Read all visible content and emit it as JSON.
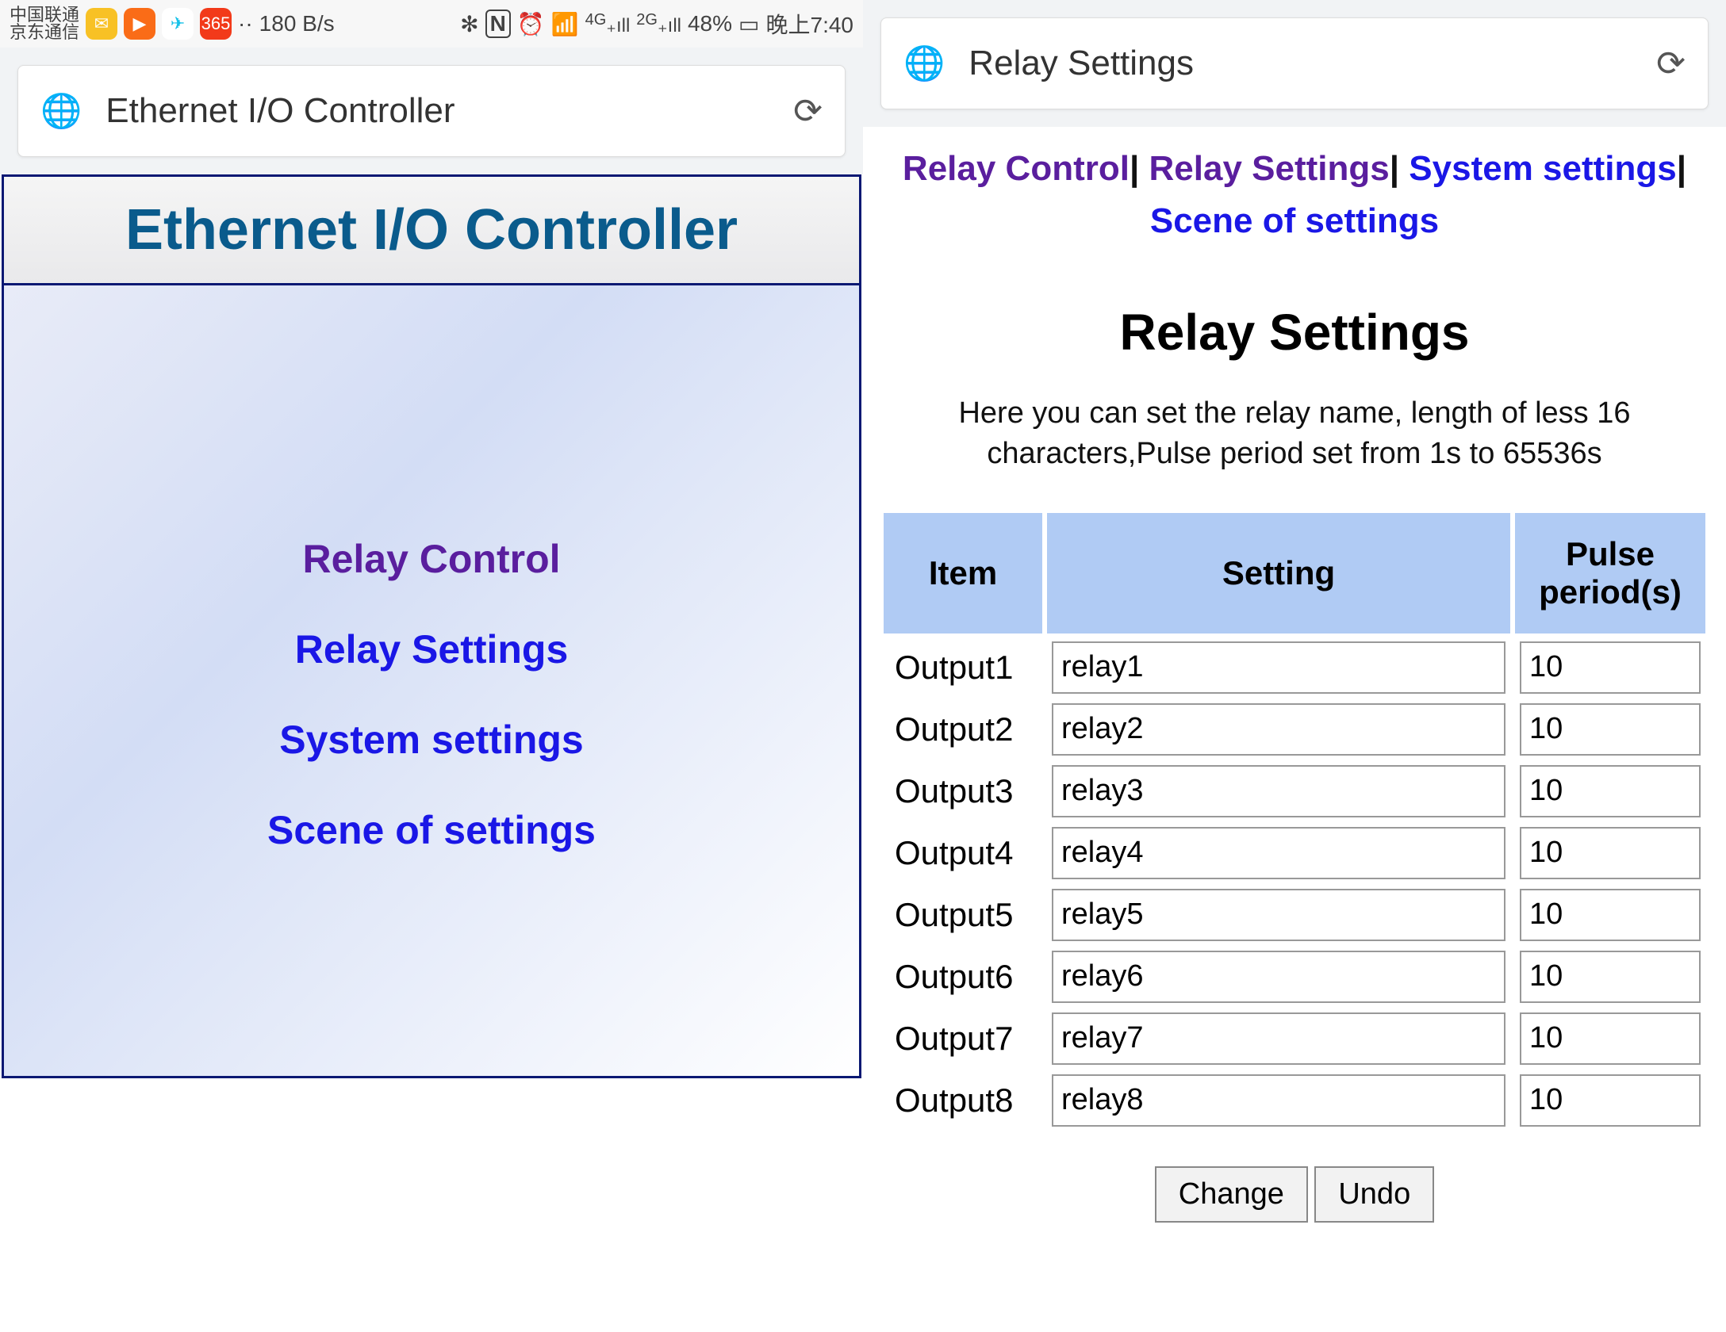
{
  "status_bar": {
    "carrier_top": "中国联通",
    "carrier_bottom": "京东通信",
    "app_icon_colors": [
      "#f8c125",
      "#fa6c17",
      "#17c1e8",
      "#f23a1a"
    ],
    "net_rate": "180 B/s",
    "battery_pct": "48%",
    "time": "晚上7:40",
    "sig_4g": "4G",
    "sig_2g": "2G"
  },
  "left": {
    "browser_label": "Ethernet I/O Controller",
    "main_title": "Ethernet I/O Controller",
    "links": [
      {
        "label": "Relay Control",
        "visited": true
      },
      {
        "label": "Relay Settings",
        "visited": false
      },
      {
        "label": "System settings",
        "visited": false
      },
      {
        "label": "Scene of settings",
        "visited": false
      }
    ]
  },
  "right": {
    "browser_label": "Relay Settings",
    "nav_links": [
      {
        "label": "Relay Control",
        "visited": true
      },
      {
        "label": "Relay Settings",
        "visited": true
      },
      {
        "label": "System settings",
        "visited": false
      },
      {
        "label": "Scene of settings",
        "visited": false
      }
    ],
    "title": "Relay Settings",
    "description": "Here you can set the relay name, length of less 16 characters,Pulse period set from 1s to 65536s",
    "table": {
      "headers": {
        "item": "Item",
        "setting": "Setting",
        "pulse": "Pulse period(s)"
      },
      "rows": [
        {
          "item": "Output1",
          "setting": "relay1",
          "pulse": "10"
        },
        {
          "item": "Output2",
          "setting": "relay2",
          "pulse": "10"
        },
        {
          "item": "Output3",
          "setting": "relay3",
          "pulse": "10"
        },
        {
          "item": "Output4",
          "setting": "relay4",
          "pulse": "10"
        },
        {
          "item": "Output5",
          "setting": "relay5",
          "pulse": "10"
        },
        {
          "item": "Output6",
          "setting": "relay6",
          "pulse": "10"
        },
        {
          "item": "Output7",
          "setting": "relay7",
          "pulse": "10"
        },
        {
          "item": "Output8",
          "setting": "relay8",
          "pulse": "10"
        }
      ]
    },
    "buttons": {
      "change": "Change",
      "undo": "Undo"
    }
  },
  "colors": {
    "header_bg": "#b0cbf4",
    "visited_link": "#5a1e9e",
    "unvisited_link": "#1a17e6",
    "title_color": "#0a5b8c",
    "frame_border": "#0a1873"
  }
}
